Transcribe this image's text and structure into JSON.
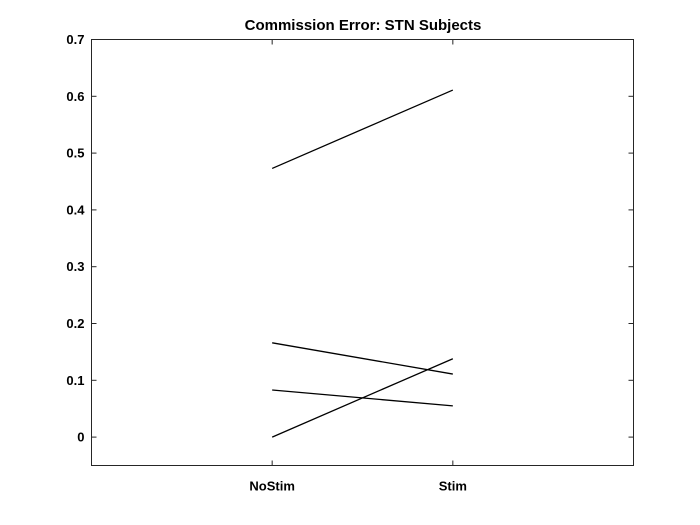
{
  "chart_data": {
    "type": "line",
    "title": "Commission Error: STN Subjects",
    "xlabel": "",
    "ylabel": "",
    "categories": [
      "NoStim",
      "Stim"
    ],
    "xlim": [
      0,
      3
    ],
    "ylim": [
      -0.05,
      0.7
    ],
    "yticks": [
      0,
      0.1,
      0.2,
      0.3,
      0.4,
      0.5,
      0.6,
      0.7
    ],
    "ytick_labels": [
      "0",
      "0.1",
      "0.2",
      "0.3",
      "0.4",
      "0.5",
      "0.6",
      "0.7"
    ],
    "grid": false,
    "legend": "none",
    "line_color": "#000000",
    "series": [
      {
        "values": [
          0.473,
          0.611
        ]
      },
      {
        "values": [
          0.166,
          0.111
        ]
      },
      {
        "values": [
          0.083,
          0.055
        ]
      },
      {
        "values": [
          0.0,
          0.138
        ]
      }
    ]
  }
}
